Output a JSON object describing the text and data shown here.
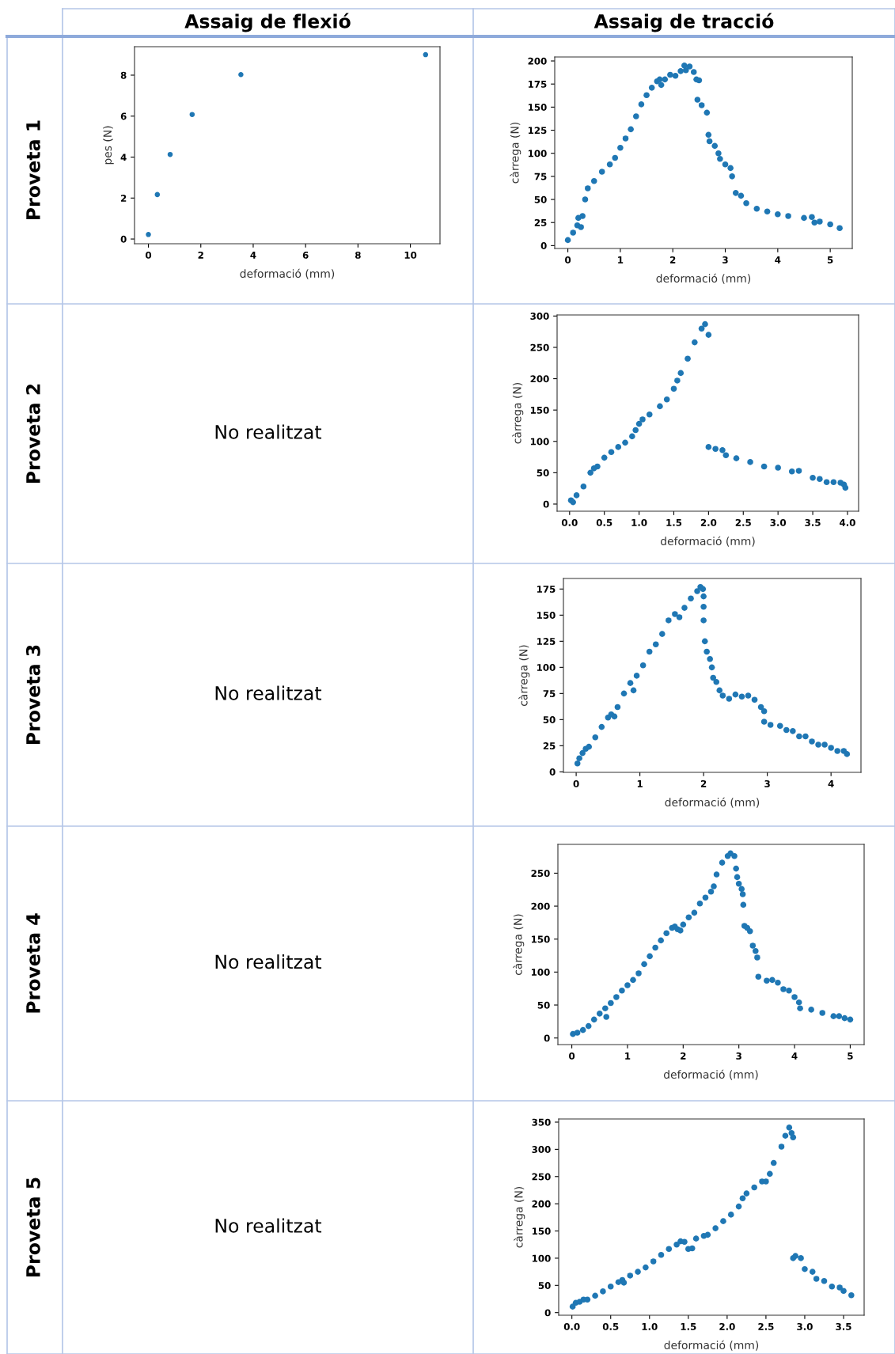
{
  "chart_data": [
    {
      "type": "other",
      "categories": [
        "Assaig de flexió",
        "Assaig de tracció"
      ],
      "y_categories": [
        "Proveta 1",
        "Proveta 2",
        "Proveta 3",
        "Proveta 4",
        "Proveta 5"
      ],
      "annotations": [
        "No realitzat",
        "No realitzat",
        "No realitzat",
        "No realitzat"
      ]
    },
    {
      "type": "scatter",
      "xlabel": "deformació (mm)",
      "ylabel": "pes (N)",
      "xlim": [
        -0.53,
        11.13
      ],
      "ylim": [
        -0.23,
        9.39
      ],
      "xticks": [
        0,
        2,
        4,
        6,
        8,
        10
      ],
      "yticks": [
        0,
        2,
        4,
        6,
        8
      ],
      "marker": "circle",
      "series": [
        {
          "color": "#1f77b4",
          "x": [
            0,
            0.34,
            0.83,
            1.67,
            3.53,
            10.58
          ],
          "values": [
            0.22,
            2.17,
            4.13,
            6.08,
            8.03,
            9.0
          ]
        }
      ]
    },
    {
      "type": "scatter",
      "xlabel": "deformació (mm)",
      "ylabel": "càrrega (N)",
      "xlim": [
        -0.25,
        5.42
      ],
      "ylim": [
        -3.1,
        204.3
      ],
      "xticks": [
        0,
        1,
        2,
        3,
        4,
        5
      ],
      "yticks": [
        0,
        25,
        50,
        75,
        100,
        125,
        150,
        175,
        200
      ],
      "marker": "circle",
      "series": [
        {
          "color": "#1f77b4",
          "x": [
            0.0,
            0.1,
            0.18,
            0.2,
            0.25,
            0.28,
            0.33,
            0.38,
            0.5,
            0.65,
            0.8,
            0.9,
            1.0,
            1.1,
            1.2,
            1.3,
            1.4,
            1.5,
            1.6,
            1.7,
            1.75,
            1.78,
            1.85,
            1.95,
            2.05,
            2.15,
            2.22,
            2.25,
            2.32,
            2.4,
            2.45,
            2.5,
            2.47,
            2.55,
            2.65,
            2.68,
            2.7,
            2.8,
            2.87,
            2.9,
            3.0,
            3.1,
            3.13,
            3.2,
            3.3,
            3.4,
            3.6,
            3.8,
            4.0,
            4.2,
            4.5,
            4.65,
            4.7,
            4.8,
            5.0,
            5.18
          ],
          "values": [
            6,
            14,
            22,
            30,
            20,
            32,
            50,
            62,
            70,
            80,
            88,
            95,
            106,
            116,
            126,
            140,
            153,
            163,
            171,
            178,
            180,
            174,
            180,
            185,
            184,
            189,
            195,
            190,
            194,
            188,
            180,
            179,
            158,
            152,
            144,
            120,
            113,
            108,
            100,
            94,
            88,
            84,
            75,
            57,
            54,
            46,
            40,
            37,
            34,
            32,
            30,
            31,
            25,
            26,
            23,
            19
          ]
        }
      ]
    },
    {
      "type": "scatter",
      "xlabel": "deformació (mm)",
      "ylabel": "càrrega (N)",
      "xlim": [
        -0.18,
        4.16
      ],
      "ylim": [
        -11.4,
        301.7
      ],
      "xticks": [
        {
          "value": 0,
          "label": "0.0"
        },
        0.5,
        {
          "value": 1,
          "label": "1.0"
        },
        1.5,
        {
          "value": 2,
          "label": "2.0"
        },
        2.5,
        {
          "value": 3,
          "label": "3.0"
        },
        3.5,
        {
          "value": 4,
          "label": "4.0"
        }
      ],
      "yticks": [
        0,
        50,
        100,
        150,
        200,
        250,
        300
      ],
      "marker": "circle",
      "series": [
        {
          "color": "#1f77b4",
          "x": [
            0.02,
            0.05,
            0.1,
            0.2,
            0.3,
            0.35,
            0.4,
            0.5,
            0.6,
            0.7,
            0.8,
            0.9,
            0.95,
            1.0,
            1.05,
            1.15,
            1.3,
            1.4,
            1.5,
            1.55,
            1.6,
            1.7,
            1.8,
            1.9,
            1.95,
            2.0,
            2.0,
            2.1,
            2.2,
            2.25,
            2.4,
            2.6,
            2.8,
            3.0,
            3.2,
            3.3,
            3.5,
            3.6,
            3.7,
            3.8,
            3.9,
            3.95,
            3.97
          ],
          "values": [
            6,
            3,
            14,
            28,
            50,
            57,
            60,
            74,
            83,
            91,
            98,
            108,
            118,
            128,
            135,
            143,
            156,
            167,
            184,
            197,
            209,
            232,
            258,
            280,
            287,
            270,
            91,
            88,
            86,
            78,
            73,
            67,
            60,
            58,
            52,
            53,
            42,
            40,
            35,
            35,
            34,
            31,
            26
          ]
        }
      ]
    },
    {
      "type": "scatter",
      "xlabel": "deformació (mm)",
      "ylabel": "càrrega (N)",
      "xlim": [
        -0.2,
        4.47
      ],
      "ylim": [
        -0.5,
        185.1
      ],
      "xticks": [
        0,
        1,
        2,
        3,
        4
      ],
      "yticks": [
        0,
        25,
        50,
        75,
        100,
        125,
        150,
        175
      ],
      "marker": "circle",
      "series": [
        {
          "color": "#1f77b4",
          "x": [
            0.02,
            0.05,
            0.1,
            0.15,
            0.2,
            0.3,
            0.4,
            0.5,
            0.55,
            0.6,
            0.65,
            0.75,
            0.85,
            0.9,
            0.95,
            1.05,
            1.15,
            1.25,
            1.35,
            1.45,
            1.55,
            1.62,
            1.7,
            1.8,
            1.9,
            1.95,
            1.99,
            2.0,
            2.0,
            2.0,
            2.02,
            2.05,
            2.1,
            2.13,
            2.15,
            2.2,
            2.25,
            2.3,
            2.4,
            2.5,
            2.6,
            2.7,
            2.8,
            2.9,
            2.95,
            2.95,
            3.05,
            3.2,
            3.3,
            3.4,
            3.5,
            3.6,
            3.7,
            3.8,
            3.9,
            4.0,
            4.1,
            4.2,
            4.25
          ],
          "values": [
            8,
            13,
            18,
            22,
            24,
            33,
            43,
            52,
            55,
            53,
            62,
            75,
            85,
            78,
            92,
            102,
            115,
            122,
            132,
            145,
            151,
            148,
            157,
            166,
            173,
            177,
            175,
            168,
            158,
            145,
            125,
            115,
            108,
            100,
            90,
            86,
            78,
            73,
            70,
            74,
            72,
            73,
            69,
            62,
            58,
            48,
            45,
            44,
            40,
            39,
            34,
            34,
            29,
            26,
            26,
            23,
            20,
            20,
            17
          ]
        }
      ]
    },
    {
      "type": "scatter",
      "xlabel": "deformació (mm)",
      "ylabel": "càrrega (N)",
      "xlim": [
        -0.25,
        5.25
      ],
      "ylim": [
        -10,
        293.7
      ],
      "xticks": [
        0,
        1,
        2,
        3,
        4,
        5
      ],
      "yticks": [
        0,
        50,
        100,
        150,
        200,
        250
      ],
      "marker": "circle",
      "series": [
        {
          "color": "#1f77b4",
          "x": [
            0.02,
            0.1,
            0.2,
            0.3,
            0.4,
            0.5,
            0.6,
            0.62,
            0.7,
            0.8,
            0.9,
            1.0,
            1.1,
            1.2,
            1.3,
            1.4,
            1.5,
            1.6,
            1.7,
            1.8,
            1.85,
            1.9,
            1.95,
            2.0,
            2.1,
            2.2,
            2.3,
            2.4,
            2.5,
            2.55,
            2.6,
            2.7,
            2.8,
            2.85,
            2.92,
            2.95,
            2.97,
            3.0,
            3.05,
            3.07,
            3.08,
            3.1,
            3.15,
            3.2,
            3.25,
            3.3,
            3.33,
            3.35,
            3.5,
            3.6,
            3.7,
            3.8,
            3.9,
            4.0,
            4.08,
            4.1,
            4.3,
            4.5,
            4.7,
            4.8,
            4.9,
            5.0
          ],
          "values": [
            6,
            8,
            12,
            18,
            28,
            37,
            45,
            32,
            53,
            62,
            72,
            80,
            88,
            98,
            112,
            124,
            137,
            148,
            159,
            167,
            169,
            165,
            163,
            172,
            183,
            190,
            204,
            213,
            222,
            230,
            248,
            266,
            276,
            280,
            276,
            257,
            244,
            234,
            226,
            218,
            202,
            170,
            167,
            162,
            140,
            132,
            122,
            93,
            87,
            88,
            84,
            74,
            72,
            62,
            54,
            45,
            43,
            38,
            33,
            33,
            30,
            28
          ]
        }
      ]
    },
    {
      "type": "scatter",
      "xlabel": "deformació (mm)",
      "ylabel": "càrrega (N)",
      "xlim": [
        -0.17,
        3.765
      ],
      "ylim": [
        -4.8,
        355.8
      ],
      "xticks": [
        {
          "value": 0,
          "label": "0.0"
        },
        0.5,
        {
          "value": 1,
          "label": "1.0"
        },
        1.5,
        {
          "value": 2,
          "label": "2.0"
        },
        2.5,
        {
          "value": 3,
          "label": "3.0"
        },
        3.5
      ],
      "yticks": [
        0,
        50,
        100,
        150,
        200,
        250,
        300,
        350
      ],
      "marker": "circle",
      "series": [
        {
          "color": "#1f77b4",
          "x": [
            0.01,
            0.05,
            0.1,
            0.15,
            0.2,
            0.3,
            0.4,
            0.5,
            0.6,
            0.65,
            0.67,
            0.75,
            0.85,
            0.95,
            1.05,
            1.15,
            1.25,
            1.35,
            1.4,
            1.45,
            1.5,
            1.55,
            1.6,
            1.7,
            1.75,
            1.85,
            1.95,
            2.05,
            2.15,
            2.2,
            2.25,
            2.35,
            2.45,
            2.5,
            2.55,
            2.6,
            2.7,
            2.75,
            2.8,
            2.83,
            2.85,
            2.85,
            2.88,
            2.95,
            3.0,
            3.1,
            3.15,
            3.25,
            3.35,
            3.45,
            3.5,
            3.6
          ],
          "values": [
            11,
            18,
            20,
            24,
            24,
            31,
            39,
            48,
            56,
            60,
            55,
            68,
            75,
            83,
            94,
            106,
            117,
            125,
            131,
            130,
            117,
            118,
            136,
            141,
            143,
            155,
            168,
            180,
            195,
            210,
            219,
            230,
            241,
            241,
            255,
            275,
            305,
            325,
            340,
            330,
            322,
            100,
            104,
            100,
            80,
            75,
            62,
            58,
            48,
            46,
            40,
            32
          ]
        }
      ]
    }
  ]
}
